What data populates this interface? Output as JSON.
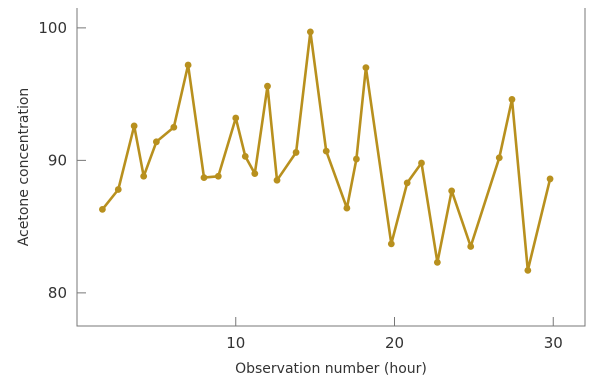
{
  "chart_data": {
    "type": "line",
    "xlabel": "Observation number (hour)",
    "ylabel": "Acetone concentration",
    "xlim": [
      0,
      32
    ],
    "ylim": [
      77.5,
      101.5
    ],
    "x_ticks": [
      10,
      20,
      30
    ],
    "y_ticks": [
      80,
      90,
      100
    ],
    "grid": false,
    "series": [
      {
        "color": "#B8901E",
        "x": [
          1.6,
          2.6,
          3.6,
          4.2,
          5.0,
          6.1,
          7.0,
          8.0,
          8.9,
          10.0,
          10.6,
          11.2,
          12.0,
          12.6,
          13.8,
          14.7,
          15.7,
          17.0,
          17.6,
          18.2,
          19.8,
          20.8,
          21.7,
          22.7,
          23.6,
          24.8,
          26.6,
          27.4,
          28.4,
          29.8
        ],
        "y": [
          86.3,
          87.8,
          92.6,
          88.8,
          91.4,
          92.5,
          97.2,
          88.7,
          88.8,
          93.2,
          90.3,
          89.0,
          95.6,
          88.5,
          90.6,
          99.7,
          90.7,
          86.4,
          90.1,
          97.0,
          83.7,
          88.3,
          89.8,
          82.3,
          87.7,
          83.5,
          90.2,
          94.6,
          81.7,
          88.6
        ]
      }
    ]
  }
}
